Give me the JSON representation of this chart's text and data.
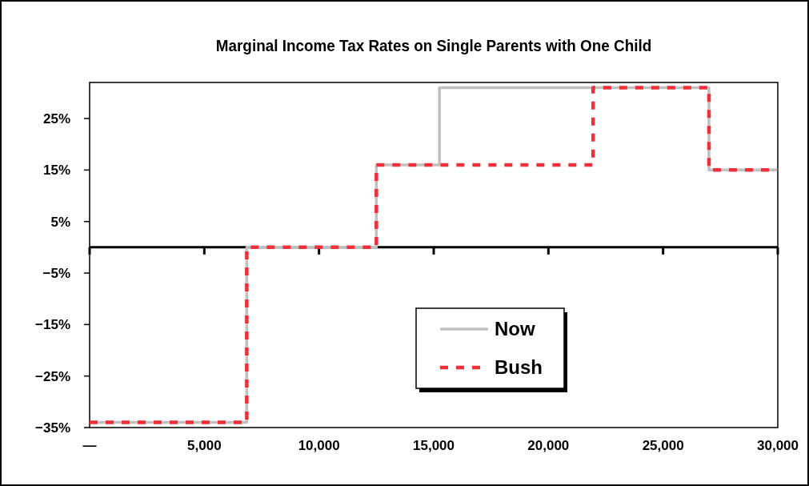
{
  "chart_data": {
    "type": "step",
    "title": "Marginal Income Tax Rates on Single Parents with One Child",
    "xlim": [
      0,
      30000
    ],
    "ylim": [
      -35,
      32
    ],
    "xticks": [
      {
        "value": 0,
        "label": "—"
      },
      {
        "value": 5000,
        "label": "5,000"
      },
      {
        "value": 10000,
        "label": "10,000"
      },
      {
        "value": 15000,
        "label": "15,000"
      },
      {
        "value": 20000,
        "label": "20,000"
      },
      {
        "value": 25000,
        "label": "25,000"
      },
      {
        "value": 30000,
        "label": "30,000"
      }
    ],
    "yticks": [
      {
        "value": 25,
        "label": "25%"
      },
      {
        "value": 15,
        "label": "15%"
      },
      {
        "value": 5,
        "label": "5%"
      },
      {
        "value": -5,
        "label": "−5%"
      },
      {
        "value": -15,
        "label": "−15%"
      },
      {
        "value": -25,
        "label": "−25%"
      },
      {
        "value": -35,
        "label": "−35%"
      }
    ],
    "series": [
      {
        "name": "Now",
        "color": "#c0c0c0",
        "line_style": "solid",
        "x": [
          0,
          6850,
          12500,
          15250,
          27000,
          30000
        ],
        "values": [
          -34,
          0,
          16,
          31,
          15,
          15
        ]
      },
      {
        "name": "Bush",
        "color": "#f0303a",
        "line_style": "dashed",
        "x": [
          0,
          6850,
          12500,
          21950,
          27000,
          30000
        ],
        "values": [
          -34,
          0,
          16,
          31,
          15,
          15
        ]
      }
    ],
    "grid": false,
    "legend": "bottom"
  }
}
